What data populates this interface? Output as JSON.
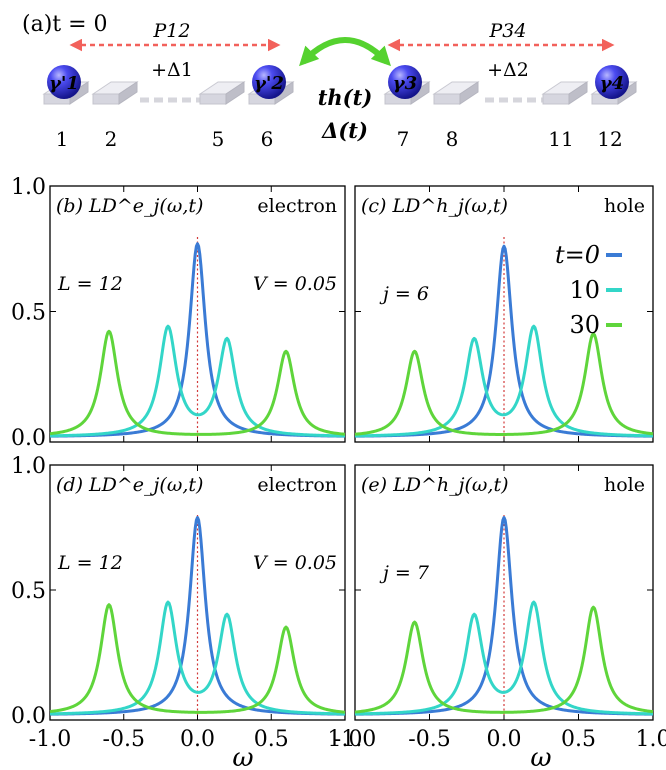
{
  "schematic": {
    "time_label": "(a)t = 0",
    "arrow_left_label": "P12",
    "arrow_left_sub": "+Δ1",
    "arrow_right_label": "P34",
    "arrow_right_sub": "+Δ2",
    "coupling_label_1": "th(t)",
    "coupling_label_2": "Δ(t)",
    "majoranas": [
      "γ'1",
      "γ'2",
      "γ3",
      "γ4"
    ],
    "site_labels": [
      "1",
      "2",
      "5",
      "6",
      "7",
      "8",
      "11",
      "12"
    ],
    "colors": {
      "arrow": "#f2615b",
      "coupling": "#55d22f",
      "sphere": "#3a3ad8",
      "tile": "#dcdde6"
    }
  },
  "panels": [
    {
      "id": "b",
      "title": "(b) LD^e_j(ω,t)",
      "tag": "electron",
      "ann_left": "L = 12",
      "ann_right": "V = 0.05"
    },
    {
      "id": "c",
      "title": "(c) LD^h_j(ω,t)",
      "tag": "hole",
      "ann_left": "j = 6",
      "ann_right": ""
    },
    {
      "id": "d",
      "title": "(d) LD^e_j(ω,t)",
      "tag": "electron",
      "ann_left": "L = 12",
      "ann_right": "V = 0.05"
    },
    {
      "id": "e",
      "title": "(e) LD^h_j(ω,t)",
      "tag": "hole",
      "ann_left": "j = 7",
      "ann_right": ""
    }
  ],
  "legend": {
    "entries": [
      "t=0",
      "10",
      "30"
    ]
  },
  "axes": {
    "xlabel": "ω",
    "x_ticks": [
      "-1.0",
      "-0.5",
      "0.0",
      "0.5",
      "1.0"
    ],
    "y_ticks": [
      "0.0",
      "0.5",
      "1.0"
    ]
  },
  "chart_data": [
    {
      "type": "line",
      "panel": "b",
      "xlabel": "ω",
      "ylabel": "",
      "xlim": [
        -1.0,
        1.0
      ],
      "ylim": [
        0,
        1.0
      ],
      "series": [
        {
          "name": "t=0",
          "color": "#3a7bd5",
          "peaks": [
            [
              0.0,
              0.77
            ]
          ],
          "width": 0.065
        },
        {
          "name": "10",
          "color": "#33d6c8",
          "peaks": [
            [
              -0.2,
              0.43
            ],
            [
              0.2,
              0.38
            ]
          ],
          "width": 0.07
        },
        {
          "name": "30",
          "color": "#5fd53b",
          "peaks": [
            [
              -0.6,
              0.42
            ],
            [
              0.6,
              0.34
            ]
          ],
          "width": 0.07
        }
      ]
    },
    {
      "type": "line",
      "panel": "c",
      "xlabel": "ω",
      "ylabel": "",
      "xlim": [
        -1.0,
        1.0
      ],
      "ylim": [
        0,
        1.0
      ],
      "series": [
        {
          "name": "t=0",
          "color": "#3a7bd5",
          "peaks": [
            [
              0.0,
              0.76
            ]
          ],
          "width": 0.065
        },
        {
          "name": "10",
          "color": "#33d6c8",
          "peaks": [
            [
              -0.2,
              0.38
            ],
            [
              0.2,
              0.43
            ]
          ],
          "width": 0.07
        },
        {
          "name": "30",
          "color": "#5fd53b",
          "peaks": [
            [
              -0.6,
              0.34
            ],
            [
              0.6,
              0.41
            ]
          ],
          "width": 0.07
        }
      ]
    },
    {
      "type": "line",
      "panel": "d",
      "xlabel": "ω",
      "ylabel": "",
      "xlim": [
        -1.0,
        1.0
      ],
      "ylim": [
        0,
        1.0
      ],
      "series": [
        {
          "name": "t=0",
          "color": "#3a7bd5",
          "peaks": [
            [
              0.0,
              0.79
            ]
          ],
          "width": 0.065
        },
        {
          "name": "10",
          "color": "#33d6c8",
          "peaks": [
            [
              -0.2,
              0.44
            ],
            [
              0.2,
              0.39
            ]
          ],
          "width": 0.07
        },
        {
          "name": "30",
          "color": "#5fd53b",
          "peaks": [
            [
              -0.6,
              0.44
            ],
            [
              0.6,
              0.35
            ]
          ],
          "width": 0.07
        }
      ]
    },
    {
      "type": "line",
      "panel": "e",
      "xlabel": "ω",
      "ylabel": "",
      "xlim": [
        -1.0,
        1.0
      ],
      "ylim": [
        0,
        1.0
      ],
      "series": [
        {
          "name": "t=0",
          "color": "#3a7bd5",
          "peaks": [
            [
              0.0,
              0.79
            ]
          ],
          "width": 0.065
        },
        {
          "name": "10",
          "color": "#33d6c8",
          "peaks": [
            [
              -0.2,
              0.39
            ],
            [
              0.2,
              0.44
            ]
          ],
          "width": 0.07
        },
        {
          "name": "30",
          "color": "#5fd53b",
          "peaks": [
            [
              -0.6,
              0.37
            ],
            [
              0.6,
              0.43
            ]
          ],
          "width": 0.07
        }
      ]
    }
  ]
}
